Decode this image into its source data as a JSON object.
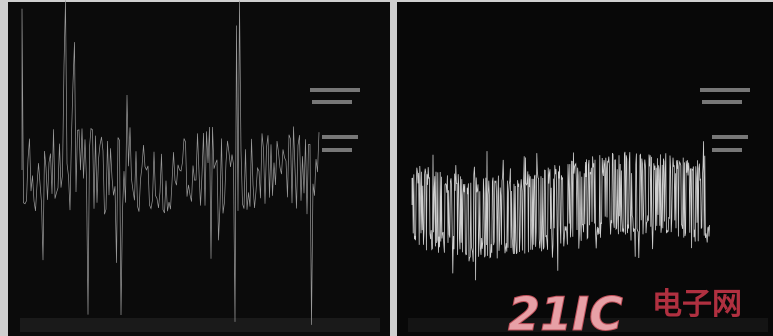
{
  "watermark": {
    "brand": "21IC",
    "site": "电子网"
  }
}
